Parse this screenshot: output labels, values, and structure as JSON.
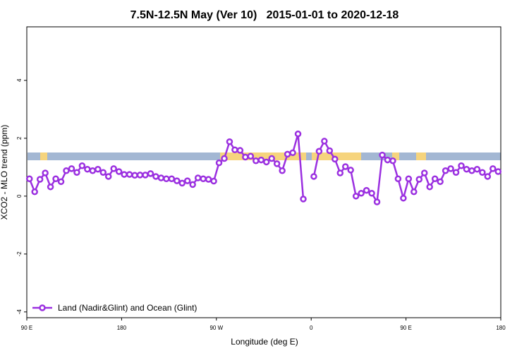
{
  "chart_data": {
    "type": "line",
    "title": "7.5N-12.5N May (Ver 10)   2015-01-01 to 2020-12-18",
    "xlabel": "Longitude (deg E)",
    "ylabel": "XCO2 - MLO trend (ppm)",
    "xlim": [
      90,
      540
    ],
    "ylim": [
      -4.2,
      5.85
    ],
    "xticks": [
      {
        "value": 90,
        "label": "90 E"
      },
      180,
      {
        "value": 270,
        "label": "90 W"
      },
      {
        "value": 360,
        "label": "0"
      },
      {
        "value": 450,
        "label": "90 E"
      },
      {
        "value": 540,
        "label": "180"
      }
    ],
    "yticks": [
      -4,
      -2,
      0,
      2,
      4
    ],
    "legend": "bottom-left",
    "x": [
      92.5,
      97.5,
      102.5,
      107.5,
      112.5,
      117.5,
      122.5,
      127.5,
      132.5,
      137.5,
      142.5,
      147.5,
      152.5,
      157.5,
      162.5,
      167.5,
      172.5,
      177.5,
      182.5,
      187.5,
      192.5,
      197.5,
      202.5,
      207.5,
      212.5,
      217.5,
      222.5,
      227.5,
      232.5,
      237.5,
      242.5,
      247.5,
      252.5,
      257.5,
      262.5,
      267.5,
      272.5,
      277.5,
      282.5,
      287.5,
      292.5,
      297.5,
      302.5,
      307.5,
      312.5,
      317.5,
      322.5,
      327.5,
      332.5,
      337.5,
      342.5,
      347.5,
      352.5,
      357.5,
      362.5,
      367.5,
      372.5,
      377.5,
      382.5,
      387.5,
      392.5,
      397.5,
      402.5,
      407.5,
      412.5,
      417.5,
      422.5,
      427.5,
      432.5,
      437.5,
      442.5,
      447.5,
      452.5,
      457.5,
      462.5,
      467.5,
      472.5,
      477.5,
      482.5,
      487.5,
      492.5,
      497.5,
      502.5,
      507.5,
      512.5,
      517.5,
      522.5,
      527.5,
      532.5,
      537.5
    ],
    "series": [
      {
        "name": "Land (Nadir&Glint) and Ocean (Glint)",
        "color": "#9b30e0",
        "values": [
          0.6,
          0.15,
          0.58,
          0.8,
          0.32,
          0.6,
          0.5,
          0.88,
          0.95,
          0.82,
          1.05,
          0.93,
          0.88,
          0.93,
          0.82,
          0.68,
          0.95,
          0.85,
          0.75,
          0.75,
          0.72,
          0.73,
          0.73,
          0.78,
          0.68,
          0.63,
          0.6,
          0.6,
          0.53,
          0.45,
          0.53,
          0.4,
          0.63,
          0.6,
          0.58,
          0.52,
          1.15,
          1.3,
          1.88,
          1.6,
          1.58,
          1.35,
          1.38,
          1.22,
          1.25,
          1.18,
          1.3,
          1.12,
          0.88,
          1.45,
          1.5,
          2.15,
          -0.1,
          null,
          0.68,
          1.55,
          1.9,
          1.57,
          1.28,
          0.8,
          1.02,
          0.9,
          0.0,
          0.1,
          0.2,
          0.1,
          -0.2,
          1.42,
          1.25,
          1.22,
          0.6,
          -0.07,
          0.6,
          0.15,
          0.58,
          0.8,
          0.32,
          0.6,
          0.5,
          0.88,
          0.95,
          0.82,
          1.05,
          0.93,
          0.88,
          0.93,
          0.82,
          0.68,
          0.95,
          0.85
        ]
      }
    ]
  }
}
